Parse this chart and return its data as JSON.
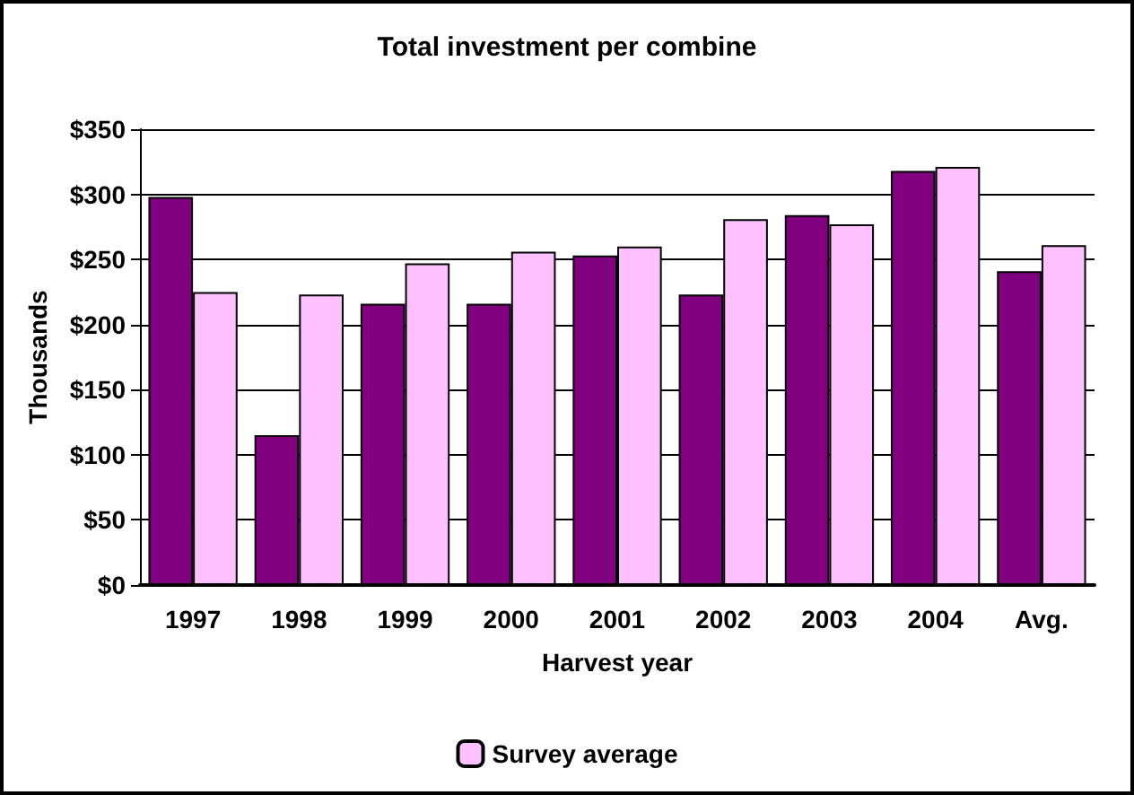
{
  "chart_data": {
    "type": "bar",
    "title": "Total investment per combine",
    "xlabel": "Harvest year",
    "ylabel": "Thousands",
    "categories": [
      "1997",
      "1998",
      "1999",
      "2000",
      "2001",
      "2002",
      "2003",
      "2004",
      "Avg."
    ],
    "series": [
      {
        "color": "#800080",
        "values": [
          298,
          115,
          216,
          216,
          253,
          223,
          284,
          318,
          241
        ]
      },
      {
        "name": "Survey average",
        "color": "#ffc0ff",
        "values": [
          225,
          223,
          247,
          256,
          260,
          281,
          277,
          321,
          261
        ]
      }
    ],
    "ylim": [
      0,
      350
    ],
    "yticks": [
      {
        "value": 0,
        "label": "$0"
      },
      {
        "value": 50,
        "label": "$50"
      },
      {
        "value": 100,
        "label": "$100"
      },
      {
        "value": 150,
        "label": "$150"
      },
      {
        "value": 200,
        "label": "$200"
      },
      {
        "value": 250,
        "label": "$250"
      },
      {
        "value": 300,
        "label": "$300"
      },
      {
        "value": 350,
        "label": "$350"
      }
    ],
    "grid": "y",
    "legend": "bottom"
  }
}
